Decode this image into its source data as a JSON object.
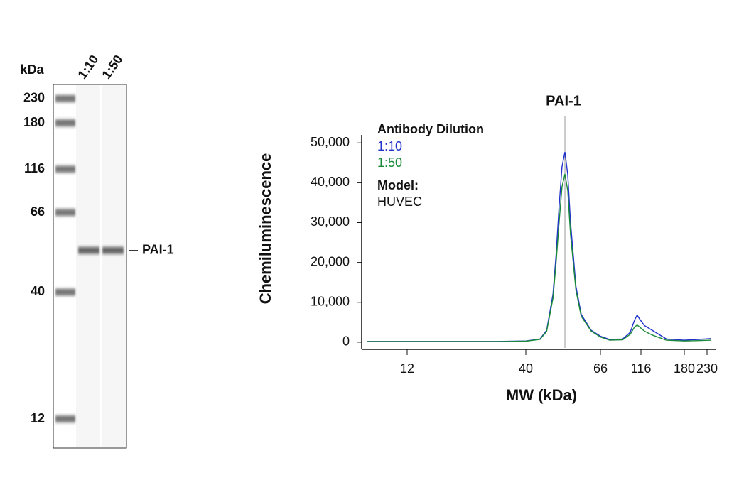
{
  "blot": {
    "unit": "kDa",
    "lanes": [
      "1:10",
      "1:50"
    ],
    "markers": [
      230,
      180,
      116,
      66,
      40,
      12
    ],
    "band_label": "PAI-1",
    "band_kda": 52
  },
  "chart_data": {
    "type": "line",
    "title": "PAI-1",
    "title_kda": 52,
    "xlabel": "MW (kDa)",
    "ylabel": "Chemiluminescence",
    "log_x": true,
    "x": [
      8,
      12,
      20,
      30,
      40,
      44,
      46,
      48,
      49,
      50,
      51,
      52,
      53,
      54,
      56,
      58,
      62,
      66,
      75,
      90,
      100,
      106,
      110,
      114,
      120,
      130,
      150,
      180,
      210,
      240
    ],
    "series": [
      {
        "name": "1:10",
        "color": "#2233cc",
        "values": [
          200,
          200,
          200,
          200,
          300,
          800,
          3000,
          12000,
          22000,
          34000,
          44000,
          47700,
          42000,
          30000,
          14000,
          7000,
          3000,
          1500,
          700,
          800,
          2500,
          5500,
          6800,
          5800,
          4200,
          3000,
          800,
          500,
          700,
          900
        ]
      },
      {
        "name": "1:50",
        "color": "#1a8a3a",
        "values": [
          150,
          150,
          150,
          150,
          250,
          700,
          2700,
          11000,
          20000,
          30000,
          39000,
          42200,
          38000,
          27000,
          13000,
          6500,
          2800,
          1300,
          500,
          600,
          2000,
          3800,
          4300,
          3800,
          2800,
          1800,
          500,
          300,
          400,
          500
        ]
      }
    ],
    "legend_title": "Antibody Dilution",
    "model_label": "Model:",
    "model": "HUVEC",
    "xlim": [
      7.6,
      254
    ],
    "xticks": [
      12,
      40,
      66,
      116,
      180,
      230
    ],
    "ylim": [
      -1800,
      52000
    ],
    "yticks": [
      0,
      {
        "value": 10000,
        "label": "10,000"
      },
      {
        "value": 20000,
        "label": "20,000"
      },
      {
        "value": 30000,
        "label": "30,000"
      },
      {
        "value": 40000,
        "label": "40,000"
      },
      {
        "value": 50000,
        "label": "50,000"
      }
    ]
  }
}
